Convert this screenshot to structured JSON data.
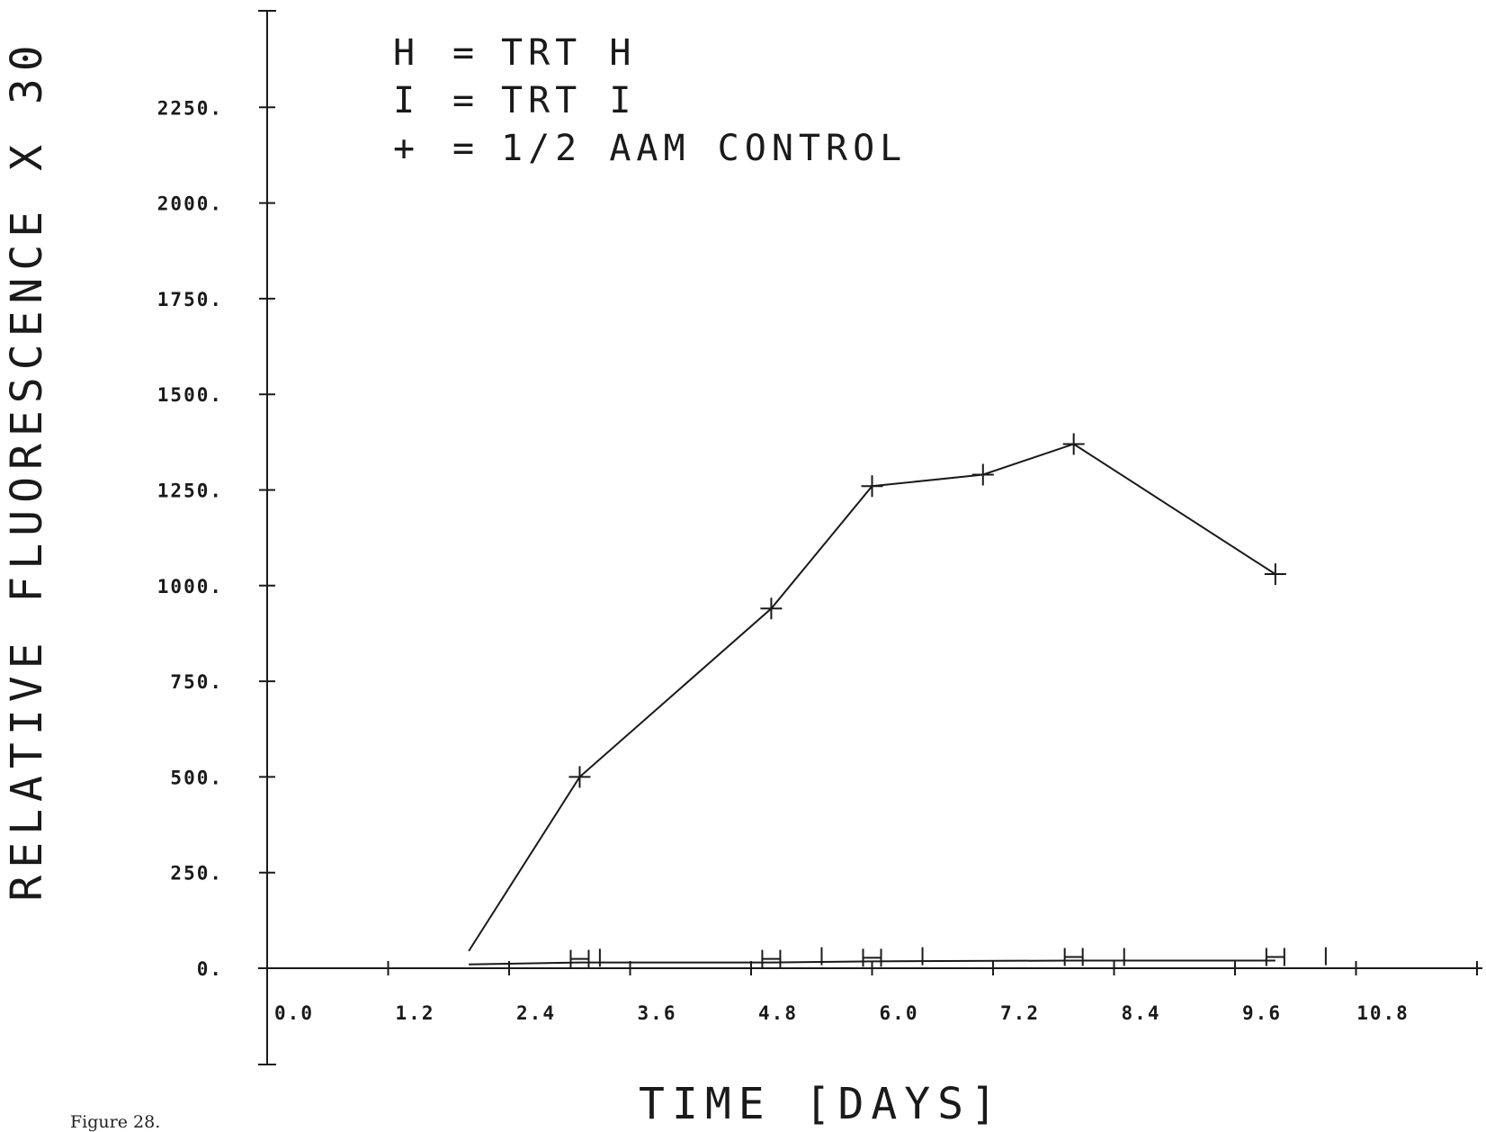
{
  "chart_data": {
    "type": "line",
    "legend": [
      {
        "symbol": "H",
        "label": "TRT H"
      },
      {
        "symbol": "I",
        "label": "TRT I"
      },
      {
        "symbol": "+",
        "label": "1/2 AAM CONTROL"
      }
    ],
    "xlabel": "TIME [DAYS]",
    "ylabel": "RELATIVE FLUORESCENCE X 30",
    "xlim": [
      0.0,
      12.0
    ],
    "ylim": [
      0,
      2500
    ],
    "x_ticks": [
      "0.0",
      "1.2",
      "2.4",
      "3.6",
      "4.8",
      "6.0",
      "7.2",
      "8.4",
      "9.6",
      "10.8"
    ],
    "y_ticks": [
      "0.",
      "250.",
      "500.",
      "750.",
      "1000.",
      "1250.",
      "1500.",
      "1750.",
      "2000.",
      "2250."
    ],
    "series": [
      {
        "name": "+",
        "points": [
          {
            "x": 2.0,
            "y": 45
          },
          {
            "x": 3.1,
            "y": 500
          },
          {
            "x": 5.0,
            "y": 940
          },
          {
            "x": 6.0,
            "y": 1260
          },
          {
            "x": 7.1,
            "y": 1290
          },
          {
            "x": 8.0,
            "y": 1370
          },
          {
            "x": 10.0,
            "y": 1030
          }
        ]
      },
      {
        "name": "H",
        "points": [
          {
            "x": 2.0,
            "y": 10
          },
          {
            "x": 3.1,
            "y": 15
          },
          {
            "x": 5.0,
            "y": 15
          },
          {
            "x": 6.0,
            "y": 18
          },
          {
            "x": 8.0,
            "y": 20
          },
          {
            "x": 10.0,
            "y": 20
          }
        ]
      },
      {
        "name": "I",
        "points": [
          {
            "x": 3.3,
            "y": 18
          },
          {
            "x": 5.5,
            "y": 22
          },
          {
            "x": 6.5,
            "y": 22
          },
          {
            "x": 8.5,
            "y": 20
          },
          {
            "x": 10.5,
            "y": 22
          }
        ]
      }
    ]
  },
  "caption": "Figure 28."
}
